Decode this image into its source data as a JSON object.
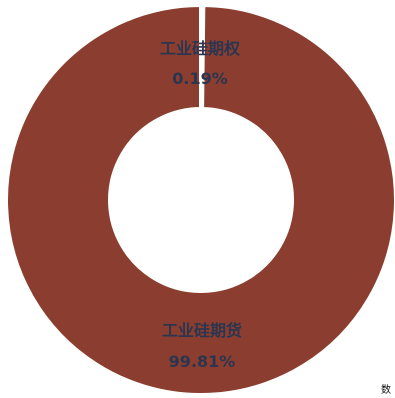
{
  "chart_data": {
    "type": "pie",
    "style": "donut",
    "slices": [
      {
        "label": "工业硅期权",
        "value": 0.19,
        "value_text": "0.19%",
        "color": "#8b3e2f"
      },
      {
        "label": "工业硅期货",
        "value": 99.81,
        "value_text": "99.81%",
        "color": "#8b3e2f"
      }
    ],
    "separator_color": "#ffffff",
    "legend": "none"
  },
  "corner_mark": "数"
}
